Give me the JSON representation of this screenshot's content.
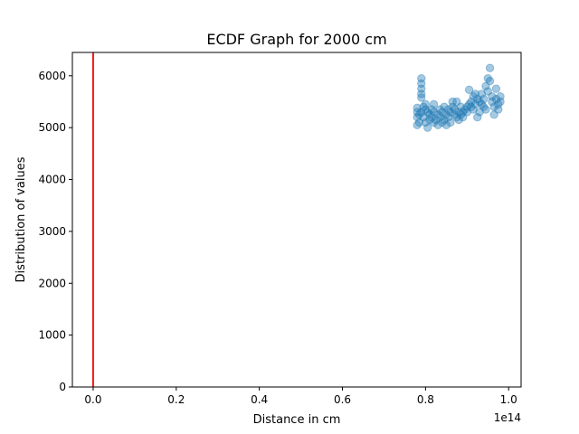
{
  "chart_data": {
    "type": "scatter",
    "title": "ECDF Graph for 2000 cm",
    "xlabel": "Distance in cm",
    "ylabel": "Distribution of values",
    "x_multiplier_label": "1e14",
    "xlim": [
      -0.05,
      1.03
    ],
    "ylim": [
      0,
      6450
    ],
    "xticks": [
      {
        "value": 0.0,
        "label": "0.0"
      },
      {
        "value": 0.2,
        "label": "0.2"
      },
      {
        "value": 0.4,
        "label": "0.4"
      },
      {
        "value": 0.6,
        "label": "0.6"
      },
      {
        "value": 0.8,
        "label": "0.8"
      },
      {
        "value": 1.0,
        "label": "1.0"
      }
    ],
    "yticks": [
      {
        "value": 0,
        "label": "0"
      },
      {
        "value": 1000,
        "label": "1000"
      },
      {
        "value": 2000,
        "label": "2000"
      },
      {
        "value": 3000,
        "label": "3000"
      },
      {
        "value": 4000,
        "label": "4000"
      },
      {
        "value": 5000,
        "label": "5000"
      },
      {
        "value": 6000,
        "label": "6000"
      }
    ],
    "grid": false,
    "legend": "none",
    "vertical_line": {
      "x": 0.0,
      "color": "#ff0000"
    },
    "series": [
      {
        "color": "#1f77b4",
        "alpha": 0.4,
        "points": [
          [
            0.78,
            5300
          ],
          [
            0.78,
            5200
          ],
          [
            0.78,
            5050
          ],
          [
            0.78,
            5380
          ],
          [
            0.785,
            5100
          ],
          [
            0.785,
            5250
          ],
          [
            0.79,
            5950
          ],
          [
            0.79,
            5850
          ],
          [
            0.79,
            5750
          ],
          [
            0.79,
            5650
          ],
          [
            0.79,
            5580
          ],
          [
            0.79,
            5300
          ],
          [
            0.795,
            5400
          ],
          [
            0.795,
            5200
          ],
          [
            0.8,
            5350
          ],
          [
            0.8,
            5100
          ],
          [
            0.8,
            5450
          ],
          [
            0.805,
            5000
          ],
          [
            0.805,
            5300
          ],
          [
            0.81,
            5150
          ],
          [
            0.81,
            5250
          ],
          [
            0.815,
            5350
          ],
          [
            0.815,
            5200
          ],
          [
            0.82,
            5100
          ],
          [
            0.82,
            5450
          ],
          [
            0.82,
            5300
          ],
          [
            0.825,
            5150
          ],
          [
            0.83,
            5250
          ],
          [
            0.83,
            5050
          ],
          [
            0.835,
            5350
          ],
          [
            0.835,
            5200
          ],
          [
            0.84,
            5100
          ],
          [
            0.84,
            5300
          ],
          [
            0.845,
            5150
          ],
          [
            0.845,
            5400
          ],
          [
            0.85,
            5250
          ],
          [
            0.85,
            5050
          ],
          [
            0.855,
            5200
          ],
          [
            0.855,
            5350
          ],
          [
            0.86,
            5300
          ],
          [
            0.86,
            5100
          ],
          [
            0.865,
            5400
          ],
          [
            0.865,
            5500
          ],
          [
            0.87,
            5250
          ],
          [
            0.87,
            5350
          ],
          [
            0.875,
            5200
          ],
          [
            0.875,
            5500
          ],
          [
            0.88,
            5300
          ],
          [
            0.88,
            5150
          ],
          [
            0.885,
            5250
          ],
          [
            0.885,
            5400
          ],
          [
            0.89,
            5300
          ],
          [
            0.89,
            5200
          ],
          [
            0.895,
            5350
          ],
          [
            0.9,
            5400
          ],
          [
            0.9,
            5300
          ],
          [
            0.905,
            5450
          ],
          [
            0.905,
            5730
          ],
          [
            0.91,
            5500
          ],
          [
            0.91,
            5400
          ],
          [
            0.915,
            5600
          ],
          [
            0.915,
            5350
          ],
          [
            0.92,
            5650
          ],
          [
            0.92,
            5450
          ],
          [
            0.925,
            5550
          ],
          [
            0.925,
            5200
          ],
          [
            0.93,
            5500
          ],
          [
            0.93,
            5300
          ],
          [
            0.935,
            5450
          ],
          [
            0.935,
            5650
          ],
          [
            0.94,
            5400
          ],
          [
            0.94,
            5550
          ],
          [
            0.945,
            5800
          ],
          [
            0.945,
            5350
          ],
          [
            0.95,
            5950
          ],
          [
            0.95,
            5700
          ],
          [
            0.955,
            6150
          ],
          [
            0.955,
            5900
          ],
          [
            0.96,
            5600
          ],
          [
            0.96,
            5500
          ],
          [
            0.965,
            5400
          ],
          [
            0.965,
            5250
          ],
          [
            0.97,
            5750
          ],
          [
            0.97,
            5550
          ],
          [
            0.975,
            5450
          ],
          [
            0.975,
            5350
          ],
          [
            0.98,
            5500
          ],
          [
            0.98,
            5600
          ]
        ]
      }
    ]
  }
}
